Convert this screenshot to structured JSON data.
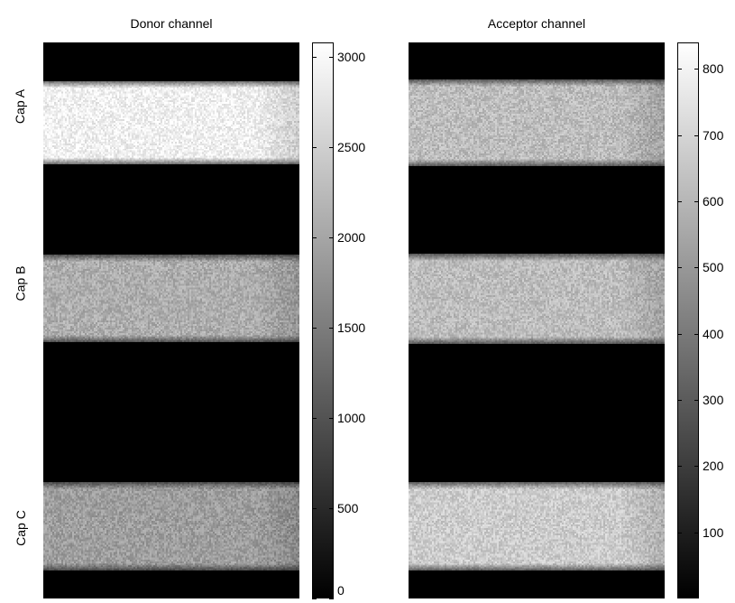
{
  "donor": {
    "title": "Donor channel",
    "colorbar_ticks": [
      "0",
      "500",
      "1000",
      "1500",
      "2000",
      "2500",
      "3000"
    ],
    "colorbar_values": [
      0,
      500,
      1000,
      1500,
      2000,
      2500,
      3000
    ],
    "colorbar_range": [
      0,
      3080
    ],
    "caps": [
      {
        "label": "Cap A",
        "level": 0.94
      },
      {
        "label": "Cap B",
        "level": 0.68
      },
      {
        "label": "Cap C",
        "level": 0.62
      }
    ]
  },
  "acceptor": {
    "title": "Acceptor channel",
    "colorbar_ticks": [
      "100",
      "200",
      "300",
      "400",
      "500",
      "600",
      "700",
      "800"
    ],
    "colorbar_values": [
      100,
      200,
      300,
      400,
      500,
      600,
      700,
      800
    ],
    "colorbar_range": [
      0,
      840
    ],
    "caps": [
      {
        "label": "Cap A",
        "level": 0.74
      },
      {
        "label": "Cap B",
        "level": 0.74
      },
      {
        "label": "Cap C",
        "level": 0.8
      }
    ]
  },
  "row_labels": [
    "Cap A",
    "Cap B",
    "Cap C"
  ],
  "colors": {
    "background": "#ffffff",
    "image_bg": "#000000"
  }
}
